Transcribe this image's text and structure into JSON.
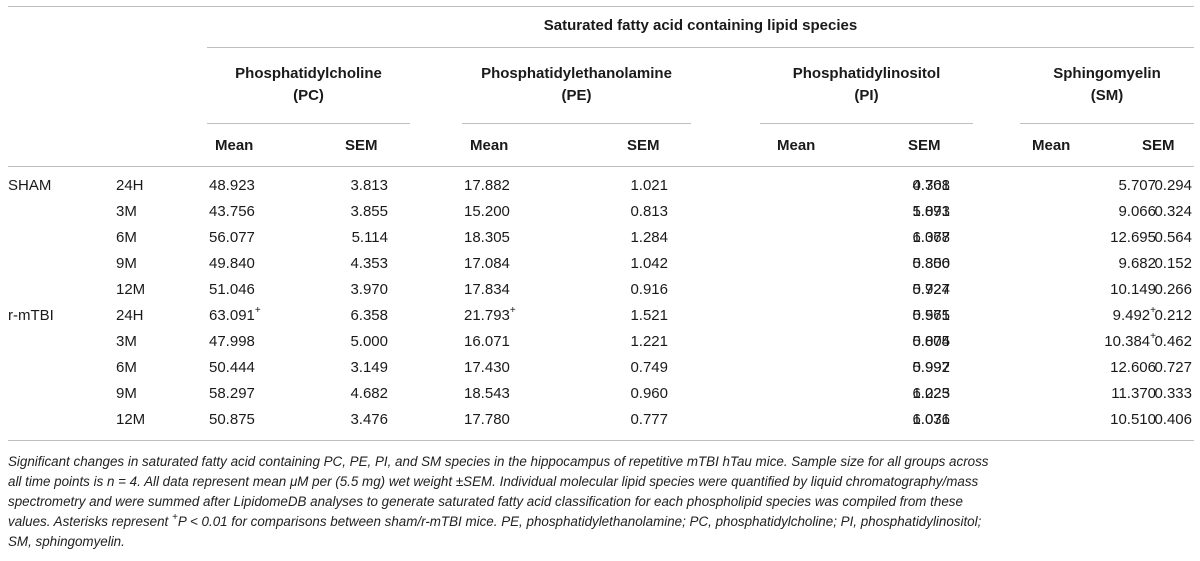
{
  "table": {
    "title": "Saturated fatty acid containing lipid species",
    "groups": [
      {
        "name": "Phosphatidylcholine",
        "abbr": "(PC)"
      },
      {
        "name": "Phosphatidylethanolamine",
        "abbr": "(PE)"
      },
      {
        "name": "Phosphatidylinositol",
        "abbr": "(PI)"
      },
      {
        "name": "Sphingomyelin",
        "abbr": "(SM)"
      }
    ],
    "col_mean": "Mean",
    "col_sem": "SEM",
    "sup_mark": "+",
    "rows": [
      {
        "group": "SHAM",
        "time": "24H",
        "vals": [
          "48.923",
          "3.813",
          "17.882",
          "1.021",
          "4.308",
          "0.761",
          "5.707",
          "0.294"
        ],
        "sig": [
          false,
          false,
          false,
          false
        ]
      },
      {
        "group": "",
        "time": "3M",
        "vals": [
          "43.756",
          "3.855",
          "15.200",
          "0.813",
          "5.873",
          "1.091",
          "9.066",
          "0.324"
        ],
        "sig": [
          false,
          false,
          false,
          false
        ]
      },
      {
        "group": "",
        "time": "6M",
        "vals": [
          "56.077",
          "5.114",
          "18.305",
          "1.284",
          "6.368",
          "1.077",
          "12.695",
          "0.564"
        ],
        "sig": [
          false,
          false,
          false,
          false
        ]
      },
      {
        "group": "",
        "time": "9M",
        "vals": [
          "49.840",
          "4.353",
          "17.084",
          "1.042",
          "5.300",
          "0.856",
          "9.682",
          "0.152"
        ],
        "sig": [
          false,
          false,
          false,
          false
        ]
      },
      {
        "group": "",
        "time": "12M",
        "vals": [
          "51.046",
          "3.970",
          "17.834",
          "0.916",
          "5.724",
          "0.927",
          "10.149",
          "0.266"
        ],
        "sig": [
          false,
          false,
          false,
          false
        ]
      },
      {
        "group": "r-mTBI",
        "time": "24H",
        "vals": [
          "63.091",
          "6.358",
          "21.793",
          "1.521",
          "5.565",
          "0.971",
          "9.492",
          "0.212"
        ],
        "sig": [
          true,
          true,
          false,
          true
        ]
      },
      {
        "group": "",
        "time": "3M",
        "vals": [
          "47.998",
          "5.000",
          "16.071",
          "1.221",
          "5.004",
          "0.875",
          "10.384",
          "0.462"
        ],
        "sig": [
          false,
          false,
          false,
          true
        ]
      },
      {
        "group": "",
        "time": "6M",
        "vals": [
          "50.444",
          "3.149",
          "17.430",
          "0.749",
          "5.997",
          "0.992",
          "12.606",
          "0.727"
        ],
        "sig": [
          false,
          false,
          false,
          false
        ]
      },
      {
        "group": "",
        "time": "9M",
        "vals": [
          "58.297",
          "4.682",
          "18.543",
          "0.960",
          "6.223",
          "1.025",
          "11.370",
          "0.333"
        ],
        "sig": [
          false,
          false,
          false,
          false
        ]
      },
      {
        "group": "",
        "time": "12M",
        "vals": [
          "50.875",
          "3.476",
          "17.780",
          "0.777",
          "6.071",
          "1.036",
          "10.510",
          "0.406"
        ],
        "sig": [
          false,
          false,
          false,
          false
        ]
      }
    ]
  },
  "caption": {
    "line1": "Significant changes in saturated fatty acid containing PC, PE, PI, and SM species in the hippocampus of repetitive mTBI hTau mice. Sample size for all groups across",
    "line2": "all time points is n = 4. All data represent mean μM per (5.5 mg) wet weight ±SEM. Individual molecular lipid species were quantified by liquid chromatography/mass",
    "line3": "spectrometry and were summed after LipidomeDB analyses to generate saturated fatty acid classification for each phospholipid species was compiled from these",
    "line4a": "values. Asterisks represent ",
    "line4sup": "+",
    "line4b": "P < 0.01 for comparisons between sham/r-mTBI mice. PE, phosphatidylethanolamine; PC, phosphatidylcholine; PI, phosphatidylinositol;",
    "line5": "SM, sphingomyelin."
  }
}
